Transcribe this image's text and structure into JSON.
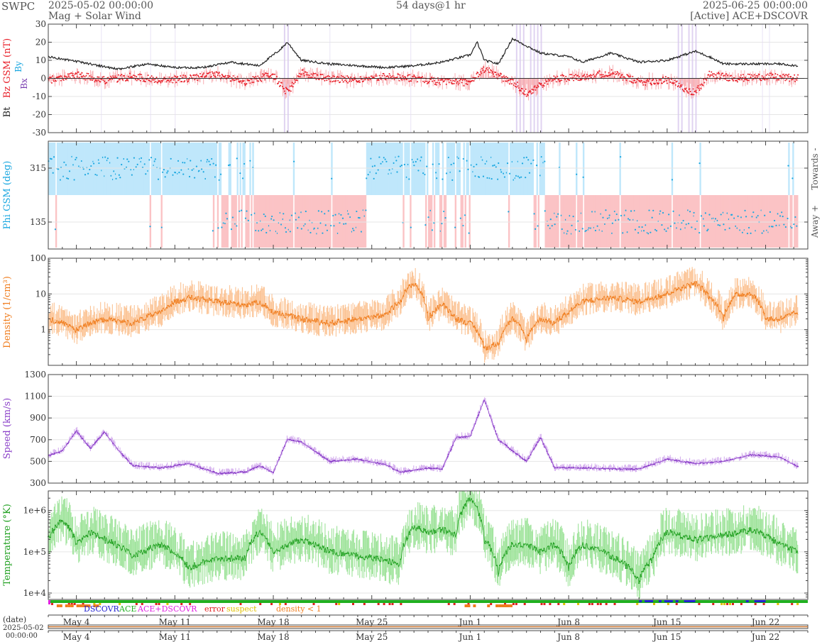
{
  "header": {
    "org": "SWPC",
    "start": "2025-05-02 00:00:00",
    "subtitle": "Mag + Solar Wind",
    "span": "54 days@1 hr",
    "end": "2025-06-25 00:00:00",
    "source": "[Active] ACE+DSCOVR"
  },
  "colors": {
    "bt": "#222222",
    "bz": "#e8202a",
    "bz_fill": "#f7a5aa",
    "bx": "#7a3fb0",
    "by": "#1aa7e0",
    "phi_towards": "#bfe7fb",
    "phi_away": "#fbc3c5",
    "phi_points": "#1aa7e0",
    "density": "#f07d1e",
    "density_fill": "#fbc394",
    "speed": "#8a3fc8",
    "speed_fill": "#d5b0ee",
    "temperature": "#20a020",
    "temperature_fill": "#9ee39a",
    "dscovr": "#2020d0",
    "ace": "#20b020",
    "ace_dscovr": "#e020e0",
    "error": "#e02020",
    "suspect": "#e0c000",
    "density_lt_1": "#f07d1e"
  },
  "chart_data": [
    {
      "type": "line",
      "ylabel_parts": [
        "Bt",
        "Bz GSM (nT)",
        "Bx",
        "By"
      ],
      "ylim": [
        -30,
        30
      ],
      "yticks": [
        -30,
        -20,
        -10,
        0,
        10,
        20,
        30
      ],
      "x_range_days": [
        0,
        54
      ],
      "series": [
        {
          "name": "Bt",
          "x_days": [
            0,
            1.5,
            3,
            5,
            7,
            9,
            11,
            13,
            15,
            16.5,
            17,
            18,
            20,
            22,
            24,
            26,
            28,
            30,
            30.5,
            31,
            32,
            33,
            35,
            37,
            38,
            40,
            42,
            44,
            46,
            47,
            48,
            50,
            52,
            53.3
          ],
          "values": [
            12,
            10,
            8,
            5,
            8,
            6,
            6,
            9,
            7,
            16,
            20,
            10,
            8,
            7,
            6,
            7,
            9,
            13,
            20,
            10,
            8,
            22,
            14,
            12,
            9,
            14,
            9,
            10,
            15,
            12,
            8,
            8,
            8,
            7
          ]
        },
        {
          "name": "Bz",
          "x_days": [
            0,
            2,
            4,
            6,
            8,
            10,
            12,
            14,
            16,
            17,
            18,
            20,
            22,
            24,
            26,
            28,
            30,
            31,
            33,
            34,
            36,
            38,
            40,
            42,
            44,
            46,
            47,
            49,
            51,
            53.3
          ],
          "values": [
            -1,
            2,
            -1,
            1,
            -1,
            0,
            2,
            -2,
            2,
            -8,
            3,
            0,
            -1,
            1,
            0,
            -2,
            -2,
            5,
            -2,
            -8,
            0,
            1,
            3,
            -2,
            -1,
            -8,
            2,
            0,
            1,
            0
          ]
        }
      ]
    },
    {
      "type": "scatter",
      "ylabel": "Phi GSM (deg)",
      "yticks": [
        135,
        315
      ],
      "ylim": [
        45,
        405
      ],
      "right_labels": [
        "Towards -",
        "Away +"
      ],
      "sectors": [
        {
          "from": 0,
          "to": 11.7,
          "polarity": "towards"
        },
        {
          "from": 11.7,
          "to": 14.5,
          "polarity": "mixed"
        },
        {
          "from": 14.5,
          "to": 22.5,
          "polarity": "away"
        },
        {
          "from": 22.5,
          "to": 26.5,
          "polarity": "towards"
        },
        {
          "from": 26.5,
          "to": 30.0,
          "polarity": "mixed"
        },
        {
          "from": 30.0,
          "to": 35.3,
          "polarity": "towards"
        },
        {
          "from": 35.3,
          "to": 42.4,
          "polarity": "away"
        },
        {
          "from": 42.4,
          "to": 53.3,
          "polarity": "away"
        }
      ]
    },
    {
      "type": "line",
      "ylabel": "Density (1/cm³)",
      "scale": "log",
      "ylim": [
        0.1,
        100
      ],
      "yticks": [
        1,
        10,
        100
      ],
      "ytick_labels": [
        "1",
        "10",
        "100"
      ],
      "series": [
        {
          "name": "Density",
          "x_days": [
            0,
            2,
            4,
            6,
            8,
            9,
            10,
            12,
            14,
            15,
            16,
            18,
            20,
            22,
            24,
            25,
            26,
            27,
            28,
            29,
            30,
            31,
            32,
            33,
            34,
            35,
            36,
            37,
            38,
            40,
            42,
            44,
            46,
            47,
            48,
            49,
            50,
            51,
            52,
            53.3
          ],
          "values": [
            2,
            1,
            2,
            1.5,
            3,
            6,
            8,
            6,
            5,
            6,
            3,
            2,
            1.5,
            2,
            2.5,
            6,
            20,
            2,
            5,
            2,
            1.5,
            0.3,
            0.4,
            2,
            0.5,
            2,
            1.5,
            3,
            6,
            8,
            6,
            10,
            20,
            8,
            2,
            10,
            10,
            2,
            2,
            3
          ]
        }
      ]
    },
    {
      "type": "line",
      "ylabel": "Speed (km/s)",
      "ylim": [
        300,
        1300
      ],
      "yticks": [
        300,
        500,
        700,
        900,
        1100,
        1300
      ],
      "series": [
        {
          "name": "Speed",
          "x_days": [
            0,
            1,
            2,
            3,
            4,
            5,
            6,
            8,
            10,
            12,
            14,
            15,
            16,
            17,
            18,
            20,
            22,
            24,
            25,
            26,
            27,
            28,
            29,
            30,
            31,
            32,
            33,
            34,
            35,
            36,
            38,
            40,
            42,
            44,
            46,
            48,
            50,
            52,
            53.3
          ],
          "values": [
            550,
            600,
            780,
            620,
            770,
            600,
            460,
            440,
            480,
            390,
            400,
            460,
            400,
            700,
            680,
            500,
            520,
            470,
            400,
            420,
            440,
            430,
            720,
            730,
            1070,
            700,
            600,
            500,
            720,
            440,
            440,
            430,
            430,
            520,
            480,
            500,
            560,
            540,
            450
          ]
        }
      ]
    },
    {
      "type": "line",
      "ylabel": "Temperature (°K)",
      "scale": "log",
      "ylim": [
        7000,
        3000000
      ],
      "yticks": [
        10000,
        100000,
        1000000
      ],
      "ytick_labels": [
        "1e+4",
        "1e+5",
        "1e+6"
      ],
      "series": [
        {
          "name": "Temperature",
          "x_days": [
            0,
            1,
            2,
            3,
            4,
            6,
            8,
            10,
            12,
            14,
            15,
            16,
            18,
            20,
            22,
            24,
            25,
            26,
            27,
            28,
            29,
            30,
            31,
            32,
            33,
            34,
            35,
            36,
            37,
            38,
            40,
            41,
            42,
            43,
            44,
            46,
            48,
            50,
            52,
            53.3
          ],
          "values": [
            200000,
            600000,
            150000,
            300000,
            200000,
            80000,
            150000,
            40000,
            70000,
            70000,
            300000,
            100000,
            200000,
            100000,
            80000,
            60000,
            50000,
            400000,
            300000,
            350000,
            250000,
            2000000,
            200000,
            30000,
            150000,
            150000,
            100000,
            150000,
            40000,
            150000,
            80000,
            50000,
            20000,
            70000,
            300000,
            200000,
            250000,
            350000,
            150000,
            100000
          ]
        }
      ]
    }
  ],
  "legend": {
    "dscovr": "DSCOVR",
    "ace": "ACE",
    "ace_dscovr": "ACE+DSCOVR",
    "error": "error",
    "suspect": "suspect",
    "density_lt_1": "density < 1"
  },
  "xaxis": {
    "date_label": "(date)",
    "start_date": "2025-05-02",
    "start_time": "00:00:00",
    "ticks": [
      {
        "day": 2,
        "label": "May 4"
      },
      {
        "day": 9,
        "label": "May 11"
      },
      {
        "day": 16,
        "label": "May 18"
      },
      {
        "day": 23,
        "label": "May 25"
      },
      {
        "day": 30,
        "label": "Jun 1"
      },
      {
        "day": 37,
        "label": "Jun 8"
      },
      {
        "day": 44,
        "label": "Jun 15"
      },
      {
        "day": 51,
        "label": "Jun 22"
      }
    ]
  }
}
